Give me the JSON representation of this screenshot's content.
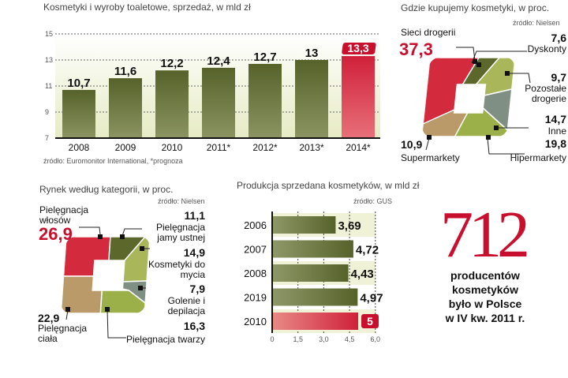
{
  "colors": {
    "olive": "#5c672c",
    "red": "#d42a3e",
    "accent_text": "#c8102e"
  },
  "chart_data": [
    {
      "type": "bar",
      "title": "Kosmetyki i wyroby toaletowe, sprzedaż, w mld zł",
      "categories": [
        "2008",
        "2009",
        "2010",
        "2011*",
        "2012*",
        "2013*",
        "2014*"
      ],
      "values": [
        10.7,
        11.6,
        12.2,
        12.4,
        12.7,
        13,
        13.3
      ],
      "value_labels": [
        "10,7",
        "11,6",
        "12,2",
        "12,4",
        "12,7",
        "13",
        "13,3"
      ],
      "highlight": [
        false,
        false,
        false,
        false,
        false,
        false,
        true
      ],
      "ylim": [
        7,
        15
      ],
      "yticks": [
        15,
        13,
        11,
        9,
        7
      ],
      "grid": true,
      "source": "źródło: Euromonitor International, *prognoza"
    },
    {
      "type": "pie",
      "title": "Gdzie kupujemy kosmetyki, w proc.",
      "source": "źródło: Nielsen",
      "slices": [
        {
          "label": "Sieci drogerii",
          "value": 37.3,
          "value_label": "37,3"
        },
        {
          "label": "Dyskonty",
          "value": 7.6,
          "value_label": "7,6"
        },
        {
          "label": "Pozostałe drogerie",
          "value": 9.7,
          "value_label": "9,7"
        },
        {
          "label": "Inne",
          "value": 14.7,
          "value_label": "14,7"
        },
        {
          "label": "Hipermarkety",
          "value": 19.8,
          "value_label": "19,8"
        },
        {
          "label": "Supermarkety",
          "value": 10.9,
          "value_label": "10,9"
        }
      ]
    },
    {
      "type": "pie",
      "title": "Rynek według kategorii, w proc.",
      "source": "źródło: Nielsen",
      "slices": [
        {
          "label": "Pielęgnacja włosów",
          "value": 26.9,
          "value_label": "26,9"
        },
        {
          "label": "Pielęgnacja jamy ustnej",
          "value": 11.1,
          "value_label": "11,1"
        },
        {
          "label": "Kosmetyki do mycia",
          "value": 14.9,
          "value_label": "14,9"
        },
        {
          "label": "Golenie i depilacja",
          "value": 7.9,
          "value_label": "7,9"
        },
        {
          "label": "Pielęgnacja twarzy",
          "value": 16.3,
          "value_label": "16,3"
        },
        {
          "label": "Pielęgnacja ciała",
          "value": 22.9,
          "value_label": "22,9"
        }
      ]
    },
    {
      "type": "bar",
      "orientation": "horizontal",
      "title": "Produkcja sprzedana kosmetyków, w mld zł",
      "source": "źródło: GUS",
      "categories": [
        "2006",
        "2007",
        "2008",
        "2019",
        "2010"
      ],
      "values": [
        3.69,
        4.72,
        4.43,
        4.97,
        5
      ],
      "value_labels": [
        "3,69",
        "4,72",
        "4,43",
        "4,97",
        "5"
      ],
      "highlight": [
        false,
        false,
        false,
        false,
        true
      ],
      "xlim": [
        0,
        6
      ],
      "xticks": [
        "0",
        "1,5",
        "3,0",
        "4,5",
        "6,0"
      ],
      "xtick_values": [
        0,
        1.5,
        3,
        4.5,
        6
      ]
    }
  ],
  "fact": {
    "number": "712",
    "lines": [
      "producentów",
      "kosmetyków",
      "było  w Polsce",
      "w IV kw. 2011 r."
    ]
  }
}
